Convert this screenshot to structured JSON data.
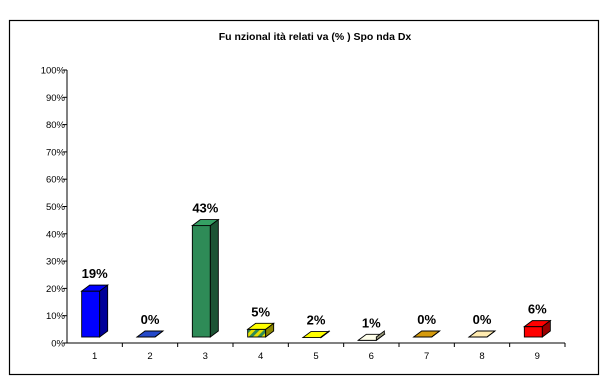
{
  "chart_data": {
    "type": "bar",
    "title": "Fu nzional ità relati va (% ) Spo nda Dx",
    "categories": [
      "1",
      "2",
      "3",
      "4",
      "5",
      "6",
      "7",
      "8",
      "9"
    ],
    "values": [
      19,
      0,
      43,
      5,
      2,
      1,
      0,
      0,
      6
    ],
    "value_labels": [
      "19%",
      "0%",
      "43%",
      "5%",
      "2%",
      "1%",
      "0%",
      "0%",
      "6%"
    ],
    "y_tick_labels": [
      "0%",
      "10%",
      "20%",
      "30%",
      "40%",
      "50%",
      "60%",
      "70%",
      "80%",
      "90%",
      "100%"
    ],
    "ylim": [
      0,
      100
    ],
    "grid": false,
    "legend": "none",
    "bar_colors": [
      "#0000FF",
      "#1F3FAF",
      "#2E8B57",
      "#E7E000",
      "#FFFF00",
      "#FFFFCC",
      "#B8860B",
      "#FFCC99",
      "#FF0000"
    ],
    "bar_patterns": [
      "solid",
      "hatched",
      "solid",
      "diagonal-stripes",
      "solid",
      "solid",
      "solid",
      "solid",
      "solid"
    ]
  }
}
